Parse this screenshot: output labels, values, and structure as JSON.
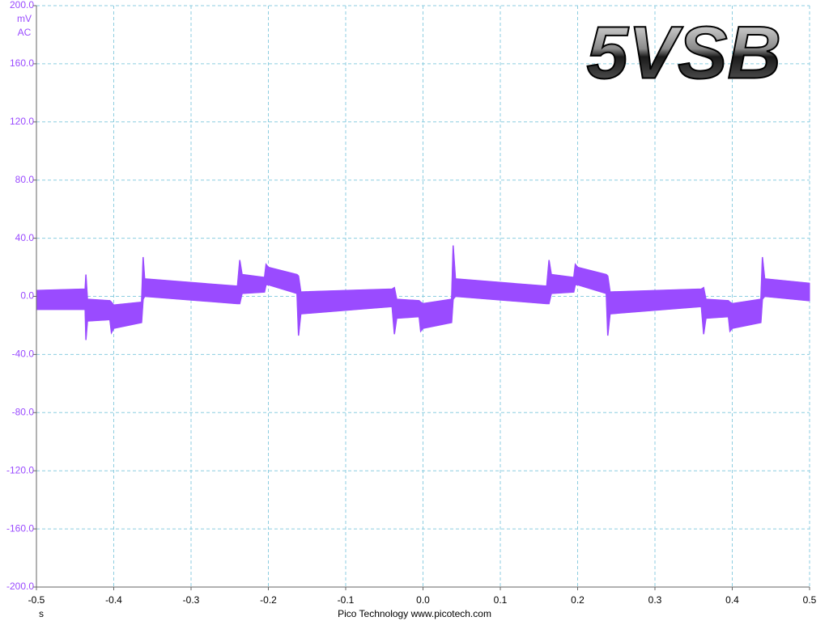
{
  "chart_data": {
    "type": "band",
    "title": "5VSB",
    "y_unit": "mV",
    "coupling": "AC",
    "x_unit": "s",
    "footer": "Pico Technology  www.picotech.com",
    "color": "#9a4bff",
    "grid": true,
    "xlim": [
      -0.5,
      0.5
    ],
    "ylim": [
      -200,
      200
    ],
    "xticks": [
      -0.5,
      -0.4,
      -0.3,
      -0.2,
      -0.1,
      {
        "value": 0,
        "label": "0.0"
      },
      0.1,
      0.2,
      0.3,
      0.4,
      0.5
    ],
    "yticks": [
      {
        "value": 200,
        "label": "200.0"
      },
      {
        "value": 160,
        "label": "160.0"
      },
      {
        "value": 120,
        "label": "120.0"
      },
      {
        "value": 80,
        "label": "80.0"
      },
      {
        "value": 40,
        "label": "40.0"
      },
      {
        "value": 0,
        "label": "0.0"
      },
      {
        "value": -40,
        "label": "-40.0"
      },
      {
        "value": -80,
        "label": "-80.0"
      },
      {
        "value": -120,
        "label": "-120.0"
      },
      {
        "value": -160,
        "label": "-160.0"
      },
      {
        "value": -200,
        "label": "-200.0"
      }
    ],
    "x": [
      -0.5,
      -0.437,
      -0.436,
      -0.434,
      -0.405,
      -0.403,
      -0.4,
      -0.364,
      -0.362,
      -0.36,
      -0.24,
      -0.237,
      -0.234,
      -0.205,
      -0.203,
      -0.2,
      -0.163,
      -0.161,
      -0.158,
      -0.04,
      -0.037,
      -0.034,
      -0.005,
      -0.003,
      0.0,
      0.037,
      0.039,
      0.042,
      0.16,
      0.163,
      0.166,
      0.195,
      0.197,
      0.2,
      0.237,
      0.239,
      0.242,
      0.36,
      0.363,
      0.366,
      0.395,
      0.397,
      0.4,
      0.437,
      0.439,
      0.442,
      0.5
    ],
    "series": [
      {
        "values": [
          4,
          5,
          15,
          -2,
          -3,
          -4,
          -6,
          -4,
          27,
          12,
          7,
          25,
          15,
          13,
          22,
          20,
          15,
          14,
          3,
          5,
          6,
          -2,
          -3,
          -4,
          -5,
          -2,
          35,
          12,
          7,
          25,
          15,
          13,
          22,
          20,
          15,
          14,
          3,
          5,
          6,
          -2,
          -3,
          -4,
          -5,
          -2,
          27,
          12,
          9
        ]
      },
      {
        "values": [
          -9,
          -9,
          -30,
          -17,
          -16,
          -25,
          -22,
          -18,
          -2,
          0,
          -5,
          -5,
          2,
          3,
          8,
          8,
          2,
          -27,
          -12,
          -7,
          -26,
          -15,
          -14,
          -24,
          -22,
          -18,
          -2,
          0,
          -5,
          -5,
          2,
          3,
          8,
          8,
          2,
          -27,
          -12,
          -7,
          -26,
          -15,
          -14,
          -24,
          -22,
          -18,
          -2,
          0,
          -3
        ]
      }
    ]
  }
}
